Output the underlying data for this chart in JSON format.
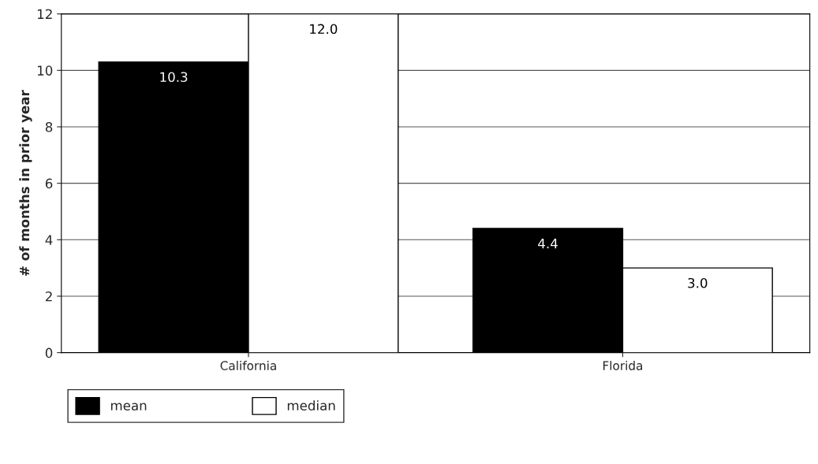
{
  "chart_data": {
    "type": "bar",
    "ylabel": "# of months in prior year",
    "categories": [
      "California",
      "Florida"
    ],
    "series": [
      {
        "name": "mean",
        "color": "#000000",
        "values": [
          10.3,
          4.4
        ],
        "value_labels": [
          "10.3",
          "4.4"
        ]
      },
      {
        "name": "median",
        "color": "#ffffff",
        "values": [
          12.0,
          3.0
        ],
        "value_labels": [
          "12.0",
          "3.0"
        ]
      }
    ],
    "ylim": [
      0,
      12
    ],
    "yticks": [
      0,
      2,
      4,
      6,
      8,
      10,
      12
    ],
    "grid": "y",
    "legend": "bottom left"
  }
}
